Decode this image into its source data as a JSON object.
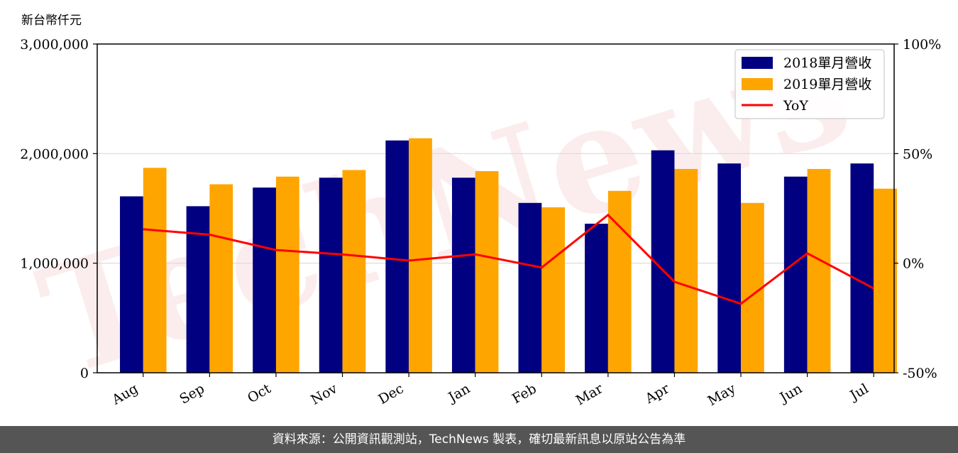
{
  "unit_label": "新台幣仟元",
  "footer": "資料來源：公開資訊觀測站，TechNews 製表，確切最新訊息以原站公告為準",
  "watermark": "TechNews",
  "colors": {
    "series_2018": "#000080",
    "series_2019": "#FFA500",
    "yoy": "#FF0000",
    "grid": "#d9d9d9",
    "footer_bg": "#555555"
  },
  "chart_data": {
    "type": "bar",
    "categories": [
      "Aug",
      "Sep",
      "Oct",
      "Nov",
      "Dec",
      "Jan",
      "Feb",
      "Mar",
      "Apr",
      "May",
      "Jun",
      "Jul"
    ],
    "series": [
      {
        "name": "2018單月營收",
        "type": "bar",
        "axis": "left",
        "values": [
          1610000,
          1520000,
          1690000,
          1780000,
          2120000,
          1780000,
          1550000,
          1360000,
          2030000,
          1910000,
          1790000,
          1910000
        ]
      },
      {
        "name": "2019單月營收",
        "type": "bar",
        "axis": "left",
        "values": [
          1870000,
          1720000,
          1790000,
          1850000,
          2140000,
          1840000,
          1510000,
          1660000,
          1860000,
          1550000,
          1860000,
          1680000
        ]
      },
      {
        "name": "YoY",
        "type": "line",
        "axis": "right",
        "values": [
          15.5,
          13,
          6,
          4,
          1.2,
          4,
          -2,
          22,
          -8.5,
          -18.5,
          4.5,
          -11.5
        ]
      }
    ],
    "y_left": {
      "ylim": [
        0,
        3000000
      ],
      "ticks": [
        0,
        1000000,
        2000000,
        3000000
      ],
      "tick_labels": [
        "0",
        "1,000,000",
        "2,000,000",
        "3,000,000"
      ]
    },
    "y_right": {
      "ylim": [
        -50,
        100
      ],
      "ticks": [
        -50,
        0,
        50,
        100
      ],
      "tick_labels": [
        "-50%",
        "0%",
        "50%",
        "100%"
      ]
    },
    "grid": true,
    "legend": "top-right"
  }
}
